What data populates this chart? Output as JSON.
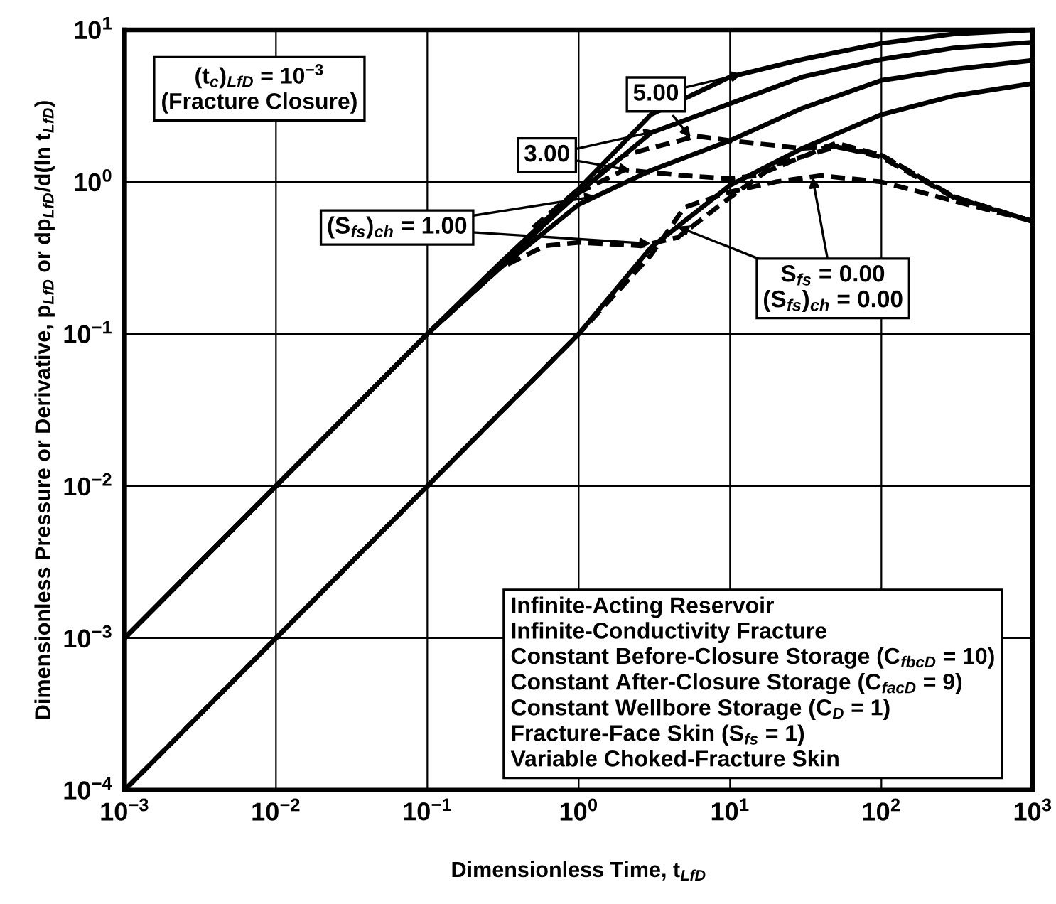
{
  "chart_data": {
    "type": "line",
    "xlabel": "Dimensionless Time, t$_{LfD}$",
    "ylabel": "Dimensionless Pressure or Derivative, p$_{LfD}$ or dp$_{LfD}$/d(ln t$_{LfD}$)",
    "x": [
      0.001,
      0.01,
      0.1,
      0.3,
      1,
      3,
      10,
      30,
      100,
      300,
      1000
    ],
    "series": [
      {
        "name": "5.00",
        "color": "#000000",
        "line_style": "solid",
        "values": [
          0.001,
          0.01,
          0.1,
          0.29,
          0.9,
          2.77,
          4.9,
          6.4,
          8.15,
          9.4,
          10
        ]
      },
      {
        "color": "#000000",
        "line_style": "dashed",
        "x": [
          0.5,
          1,
          2,
          6,
          10,
          30,
          50,
          100,
          300,
          1000
        ],
        "values": [
          0.5,
          0.9,
          1.5,
          2.0,
          1.87,
          1.66,
          1.72,
          1.45,
          0.79,
          0.55
        ]
      },
      {
        "name": "3.00",
        "color": "#000000",
        "line_style": "solid",
        "values": [
          0.001,
          0.01,
          0.1,
          0.28,
          0.85,
          2.1,
          3.27,
          4.9,
          6.4,
          7.6,
          8.3
        ]
      },
      {
        "color": "#000000",
        "line_style": "dashed",
        "x": [
          0.3,
          1,
          2,
          5,
          10,
          15,
          50,
          100,
          300,
          1000
        ],
        "values": [
          0.28,
          0.85,
          1.2,
          1.1,
          1.05,
          1.1,
          1.8,
          1.5,
          0.8,
          0.55
        ]
      },
      {
        "name": "(S$_{fs}$)$_{ch}$ = 1.00",
        "color": "#000000",
        "line_style": "solid",
        "values": [
          0.001,
          0.01,
          0.1,
          0.27,
          0.71,
          1.19,
          1.87,
          3.05,
          4.65,
          5.5,
          6.3
        ]
      },
      {
        "color": "#000000",
        "line_style": "dashed",
        "x": [
          0.1,
          0.3,
          0.6,
          1,
          2.6,
          4.5,
          10,
          20,
          50,
          100,
          300,
          1000
        ],
        "values": [
          0.1,
          0.27,
          0.38,
          0.4,
          0.38,
          0.43,
          0.79,
          1.3,
          1.7,
          1.5,
          0.8,
          0.55
        ]
      },
      {
        "name": "S$_{fs}$ = 0.00\n(S$_{fs}$)$_{ch}$ = 0.00",
        "color": "#000000",
        "line_style": "solid",
        "values": [
          0.0001,
          0.001,
          0.01,
          0.03,
          0.1,
          0.37,
          0.95,
          1.66,
          2.77,
          3.68,
          4.44
        ]
      },
      {
        "color": "#000000",
        "line_style": "dashed",
        "x": [
          0.001,
          0.01,
          0.1,
          0.3,
          1,
          3,
          5,
          10,
          20,
          40,
          100,
          300,
          1000
        ],
        "values": [
          0.0001,
          0.001,
          0.01,
          0.03,
          0.1,
          0.33,
          0.68,
          0.86,
          1.0,
          1.1,
          1.0,
          0.75,
          0.55
        ]
      }
    ],
    "log": "xy",
    "xlim": [
      0.001,
      1000
    ],
    "ylim": [
      0.0001,
      10
    ],
    "xticks": [
      {
        "value": 0.001,
        "label": "10$^{−3}$"
      },
      {
        "value": 0.01,
        "label": "10$^{−2}$"
      },
      {
        "value": 0.1,
        "label": "10$^{−1}$"
      },
      {
        "value": 1,
        "label": "10$^{0}$"
      },
      {
        "value": 10,
        "label": "10$^{1}$"
      },
      {
        "value": 100,
        "label": "10$^{2}$"
      },
      {
        "value": 1000,
        "label": "10$^{3}$"
      }
    ],
    "yticks": [
      {
        "value": 0.0001,
        "label": "10$^{−4}$"
      },
      {
        "value": 0.001,
        "label": "10$^{−3}$"
      },
      {
        "value": 0.01,
        "label": "10$^{−2}$"
      },
      {
        "value": 0.1,
        "label": "10$^{−1}$"
      },
      {
        "value": 1,
        "label": "10$^{0}$"
      },
      {
        "value": 10,
        "label": "10$^{1}$"
      }
    ],
    "grid": true,
    "legend": "top",
    "annotations": [
      "(t$_{c}$)$_{LfD}$ = 10$^{−3}$\n(Fracture Closure)",
      "Infinite-Acting Reservoir\nInfinite-Conductivity Fracture\nConstant Before-Closure Storage (C$_{fbcD}$ = 10)\nConstant After-Closure Storage (C$_{facD}$ = 9)\nConstant Wellbore Storage (C$_{D}$ = 1)\nFracture-Face Skin (S$_{fs}$ = 1)\nVariable Choked-Fracture Skin"
    ]
  }
}
